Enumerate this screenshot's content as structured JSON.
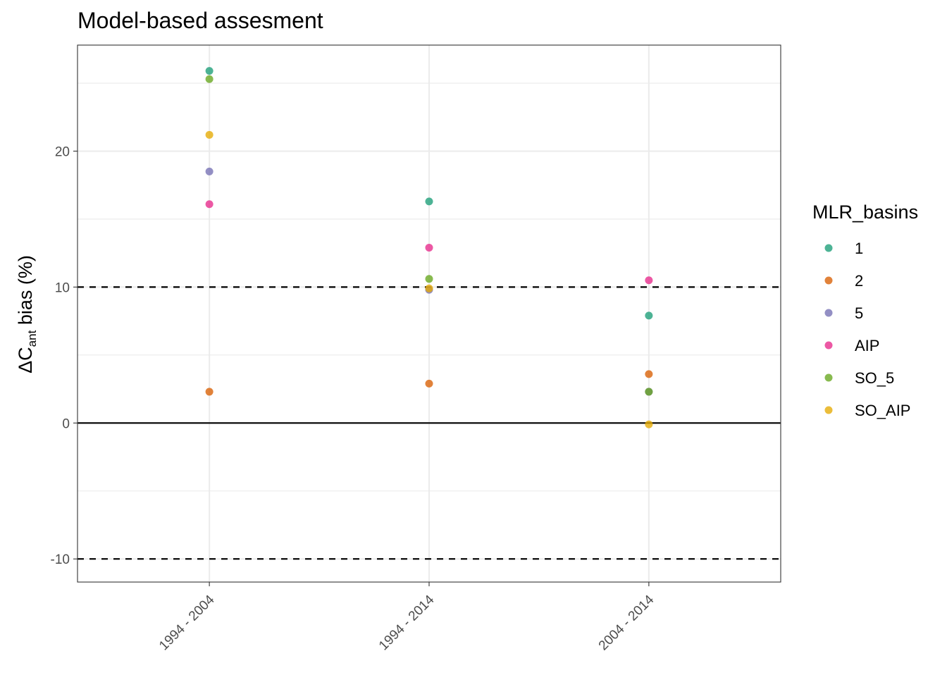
{
  "chart_data": {
    "type": "scatter",
    "title": "Model-based assesment",
    "xlabel": "",
    "ylabel": {
      "prefix": "ΔC",
      "subscript": "ant",
      "suffix": " bias (%)"
    },
    "categories": [
      "1994 - 2004",
      "1994 - 2014",
      "2004 - 2014"
    ],
    "ylim": [
      -11.7,
      27.8
    ],
    "yticks": [
      -10,
      0,
      10,
      20
    ],
    "hlines": {
      "solid": [
        0
      ],
      "dashed": [
        -10,
        10
      ]
    },
    "grid": true,
    "legend": {
      "title": "MLR_basins",
      "position": "right"
    },
    "series": [
      {
        "name": "1",
        "color": "#1b9e77",
        "values": [
          25.9,
          16.3,
          7.9
        ]
      },
      {
        "name": "2",
        "color": "#d95f02",
        "values": [
          2.3,
          2.9,
          3.6
        ]
      },
      {
        "name": "5",
        "color": "#7570b3",
        "values": [
          18.5,
          9.8,
          2.3
        ]
      },
      {
        "name": "AIP",
        "color": "#e7298a",
        "values": [
          16.1,
          12.9,
          10.5
        ]
      },
      {
        "name": "SO_5",
        "color": "#66a61e",
        "values": [
          25.3,
          10.6,
          2.3
        ]
      },
      {
        "name": "SO_AIP",
        "color": "#e6ab02",
        "values": [
          21.2,
          9.9,
          -0.1
        ]
      }
    ]
  }
}
